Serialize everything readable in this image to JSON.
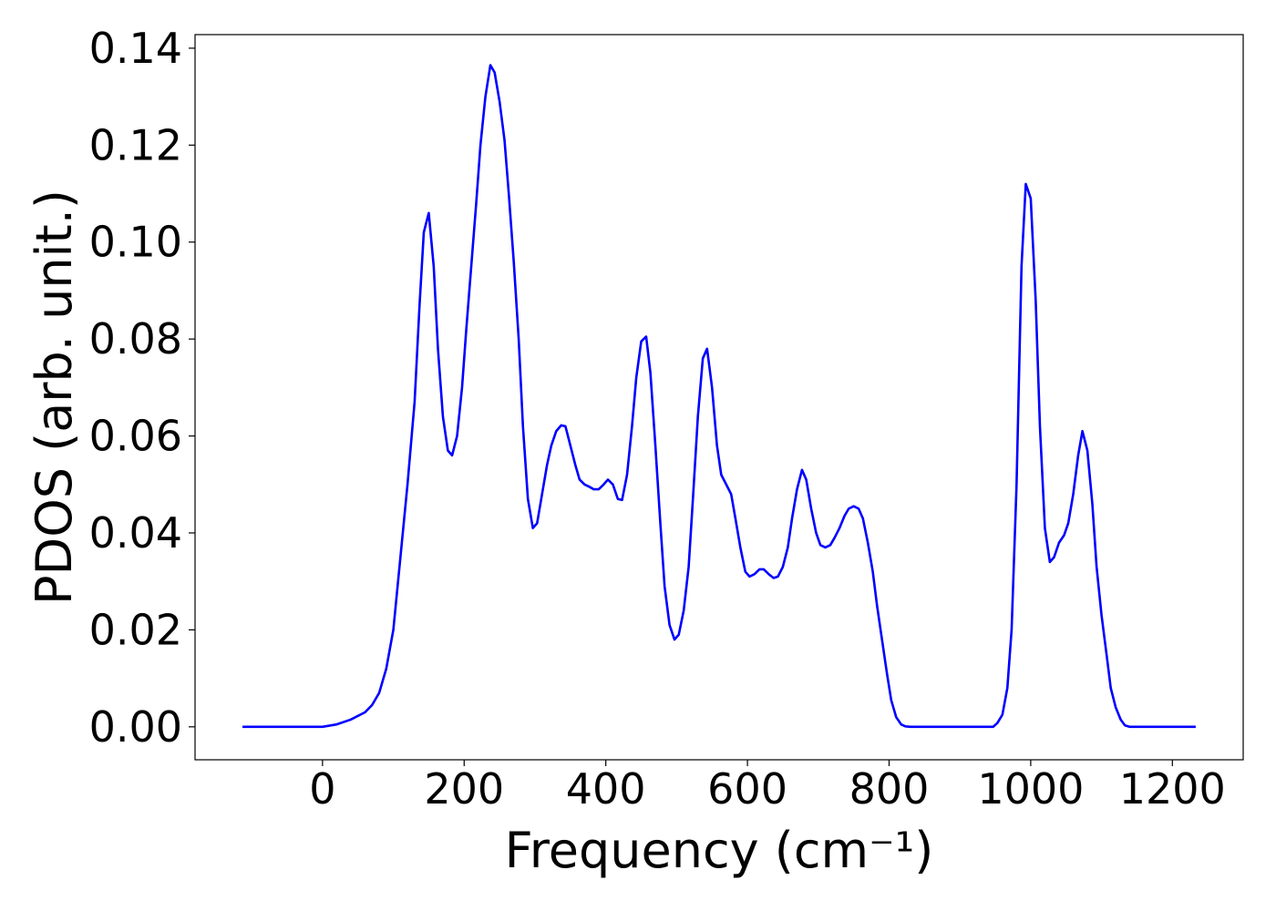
{
  "chart_data": {
    "type": "line",
    "xlabel": "Frequency (cm⁻¹)",
    "ylabel": "PDOS (arb. unit.)",
    "xlim": [
      -180,
      1300
    ],
    "ylim": [
      -0.0068,
      0.1428
    ],
    "xticks": [
      0,
      200,
      400,
      600,
      800,
      1000,
      1200
    ],
    "yticks": [
      {
        "value": 0,
        "label": "0.00"
      },
      {
        "value": 0.02,
        "label": "0.02"
      },
      {
        "value": 0.04,
        "label": "0.04"
      },
      {
        "value": 0.06,
        "label": "0.06"
      },
      {
        "value": 0.08,
        "label": "0.08"
      },
      {
        "value": 0.1,
        "label": "0.10"
      },
      {
        "value": 0.12,
        "label": "0.12"
      },
      {
        "value": 0.14,
        "label": "0.14"
      }
    ],
    "x": [
      -113,
      -80,
      -40,
      -20,
      0,
      20,
      40,
      60,
      70,
      80,
      90,
      100,
      110,
      120,
      130,
      137,
      143,
      150,
      157,
      163,
      170,
      177,
      183,
      190,
      197,
      203,
      210,
      217,
      223,
      230,
      237,
      243,
      250,
      257,
      263,
      270,
      277,
      283,
      290,
      297,
      303,
      310,
      317,
      323,
      330,
      337,
      343,
      350,
      357,
      363,
      370,
      377,
      383,
      390,
      397,
      403,
      410,
      417,
      423,
      430,
      437,
      443,
      450,
      457,
      463,
      470,
      477,
      483,
      490,
      497,
      503,
      510,
      517,
      523,
      530,
      537,
      543,
      550,
      557,
      563,
      570,
      577,
      583,
      590,
      597,
      603,
      610,
      617,
      623,
      630,
      637,
      643,
      650,
      657,
      663,
      670,
      677,
      683,
      690,
      697,
      703,
      710,
      717,
      723,
      730,
      737,
      743,
      750,
      757,
      763,
      770,
      777,
      783,
      790,
      797,
      803,
      810,
      817,
      823,
      830,
      900,
      947,
      953,
      960,
      967,
      973,
      980,
      987,
      993,
      1000,
      1007,
      1013,
      1020,
      1027,
      1033,
      1040,
      1047,
      1053,
      1060,
      1067,
      1073,
      1080,
      1087,
      1093,
      1100,
      1107,
      1113,
      1120,
      1127,
      1133,
      1140,
      1233
    ],
    "series": [
      {
        "name": "PDOS",
        "color": "#0000ff",
        "values": [
          0,
          0,
          0,
          0,
          0,
          0.0005,
          0.0015,
          0.003,
          0.0045,
          0.007,
          0.012,
          0.02,
          0.035,
          0.05,
          0.067,
          0.087,
          0.102,
          0.106,
          0.095,
          0.078,
          0.064,
          0.057,
          0.056,
          0.06,
          0.07,
          0.082,
          0.095,
          0.108,
          0.12,
          0.13,
          0.1365,
          0.135,
          0.129,
          0.121,
          0.11,
          0.096,
          0.08,
          0.062,
          0.047,
          0.041,
          0.042,
          0.048,
          0.054,
          0.058,
          0.061,
          0.0622,
          0.062,
          0.058,
          0.054,
          0.051,
          0.05,
          0.0495,
          0.049,
          0.049,
          0.05,
          0.051,
          0.05,
          0.047,
          0.0468,
          0.052,
          0.062,
          0.072,
          0.0795,
          0.0805,
          0.073,
          0.058,
          0.042,
          0.029,
          0.021,
          0.018,
          0.019,
          0.024,
          0.033,
          0.047,
          0.064,
          0.076,
          0.078,
          0.07,
          0.058,
          0.052,
          0.05,
          0.048,
          0.043,
          0.037,
          0.032,
          0.031,
          0.0315,
          0.0325,
          0.0325,
          0.0315,
          0.0307,
          0.031,
          0.033,
          0.037,
          0.043,
          0.049,
          0.053,
          0.051,
          0.045,
          0.04,
          0.0375,
          0.037,
          0.0375,
          0.039,
          0.041,
          0.0435,
          0.045,
          0.0455,
          0.045,
          0.043,
          0.038,
          0.032,
          0.025,
          0.018,
          0.011,
          0.0055,
          0.002,
          0.0005,
          0.0001,
          0,
          0,
          0,
          0.0008,
          0.0025,
          0.008,
          0.02,
          0.05,
          0.095,
          0.112,
          0.109,
          0.088,
          0.062,
          0.041,
          0.034,
          0.035,
          0.038,
          0.0395,
          0.042,
          0.048,
          0.056,
          0.061,
          0.057,
          0.046,
          0.033,
          0.023,
          0.015,
          0.008,
          0.004,
          0.0015,
          0.0003,
          0,
          0
        ]
      }
    ]
  }
}
